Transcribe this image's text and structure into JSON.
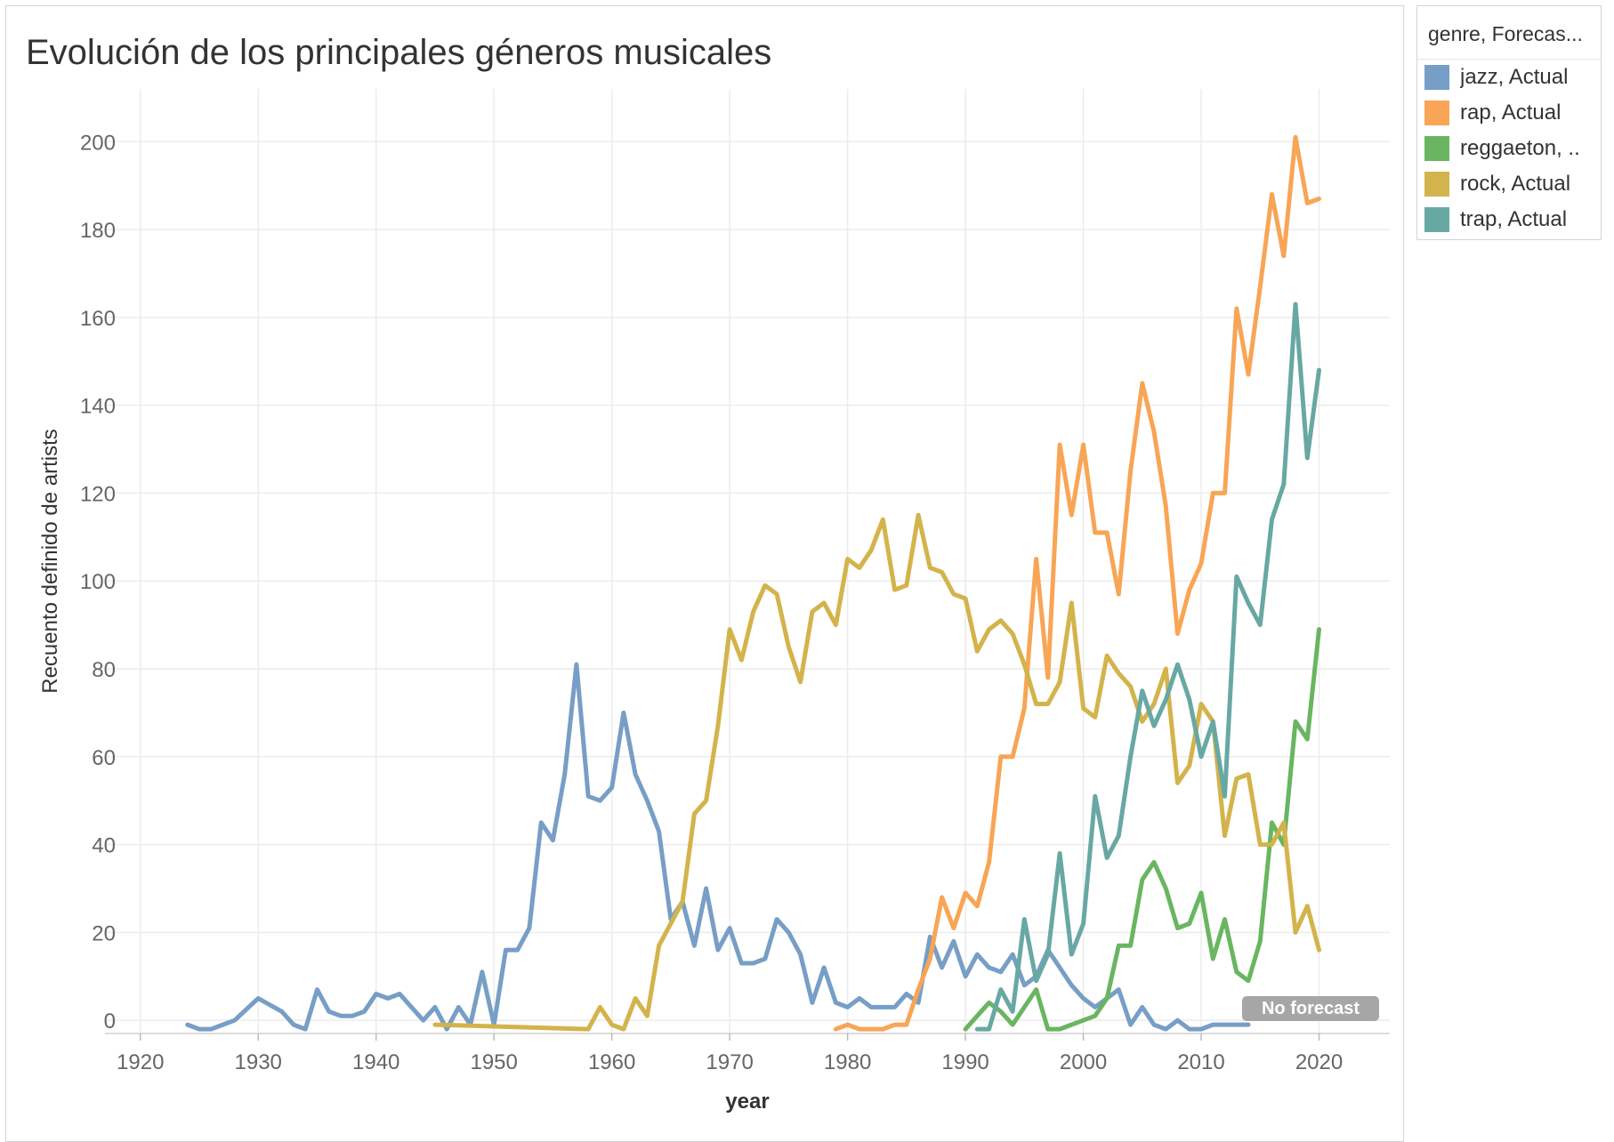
{
  "chart_data": {
    "type": "line",
    "title": "Evolución de los principales géneros musicales",
    "xlabel": "year",
    "ylabel": "Recuento definido de artists",
    "xlim": [
      1917,
      2026
    ],
    "ylim": [
      -3,
      212
    ],
    "xticks": [
      1920,
      1930,
      1940,
      1950,
      1960,
      1970,
      1980,
      1990,
      2000,
      2010,
      2020
    ],
    "yticks": [
      0,
      20,
      40,
      60,
      80,
      100,
      120,
      140,
      160,
      180,
      200
    ],
    "grid": true,
    "legend": {
      "title": "genre, Forecas...",
      "position": "right",
      "entries": [
        "jazz, Actual",
        "rap, Actual",
        "reggaeton, ..",
        "rock, Actual",
        "trap, Actual"
      ]
    },
    "annotation": "No forecast",
    "series": [
      {
        "name": "jazz, Actual",
        "color": "#779ec6",
        "x": [
          1924,
          1925,
          1926,
          1928,
          1930,
          1932,
          1933,
          1934,
          1935,
          1936,
          1937,
          1938,
          1939,
          1940,
          1941,
          1942,
          1943,
          1944,
          1945,
          1946,
          1947,
          1948,
          1949,
          1950,
          1951,
          1952,
          1953,
          1954,
          1955,
          1956,
          1957,
          1958,
          1959,
          1960,
          1961,
          1962,
          1963,
          1964,
          1965,
          1966,
          1967,
          1968,
          1969,
          1970,
          1971,
          1972,
          1973,
          1974,
          1975,
          1976,
          1977,
          1978,
          1979,
          1980,
          1981,
          1982,
          1983,
          1984,
          1985,
          1986,
          1987,
          1988,
          1989,
          1990,
          1991,
          1992,
          1993,
          1994,
          1995,
          1996,
          1997,
          1998,
          1999,
          2000,
          2001,
          2002,
          2003,
          2004,
          2005,
          2006,
          2007,
          2008,
          2009,
          2010,
          2011,
          2012,
          2013,
          2014
        ],
        "y": [
          -1,
          -2,
          -2,
          0,
          5,
          2,
          -1,
          -2,
          7,
          2,
          1,
          1,
          2,
          6,
          5,
          6,
          3,
          0,
          3,
          -2,
          3,
          -1,
          11,
          -1,
          16,
          16,
          21,
          45,
          41,
          56,
          81,
          51,
          50,
          53,
          70,
          56,
          50,
          43,
          23,
          27,
          17,
          30,
          16,
          21,
          13,
          13,
          14,
          23,
          20,
          15,
          4,
          12,
          4,
          3,
          5,
          3,
          3,
          3,
          6,
          4,
          19,
          12,
          18,
          10,
          15,
          12,
          11,
          15,
          8,
          10,
          16,
          12,
          8,
          5,
          3,
          5,
          7,
          -1,
          3,
          -1,
          -2,
          0,
          -2,
          -2,
          -1,
          -1,
          -1,
          -1
        ]
      },
      {
        "name": "rap, Actual",
        "color": "#f8a555",
        "x": [
          1979,
          1980,
          1981,
          1982,
          1983,
          1984,
          1985,
          1986,
          1987,
          1988,
          1989,
          1990,
          1991,
          1992,
          1993,
          1994,
          1995,
          1996,
          1997,
          1998,
          1999,
          2000,
          2001,
          2002,
          2003,
          2004,
          2005,
          2006,
          2007,
          2008,
          2009,
          2010,
          2011,
          2012,
          2013,
          2014,
          2015,
          2016,
          2017,
          2018,
          2019,
          2020
        ],
        "y": [
          -2,
          -1,
          -2,
          -2,
          -2,
          -1,
          -1,
          7,
          14,
          28,
          21,
          29,
          26,
          36,
          60,
          60,
          71,
          105,
          78,
          131,
          115,
          131,
          111,
          111,
          97,
          125,
          145,
          134,
          117,
          88,
          98,
          104,
          120,
          120,
          162,
          147,
          167,
          188,
          174,
          201,
          186,
          187
        ]
      },
      {
        "name": "reggaeton, ..",
        "color": "#6ab561",
        "x": [
          1990,
          1991,
          1992,
          1993,
          1994,
          1995,
          1996,
          1997,
          1998,
          1999,
          2000,
          2001,
          2002,
          2003,
          2004,
          2005,
          2006,
          2007,
          2008,
          2009,
          2010,
          2011,
          2012,
          2013,
          2014,
          2015,
          2016,
          2017,
          2018,
          2019,
          2020
        ],
        "y": [
          -2,
          1,
          4,
          2,
          -1,
          3,
          7,
          -2,
          -2,
          -1,
          0,
          1,
          5,
          17,
          17,
          32,
          36,
          30,
          21,
          22,
          29,
          14,
          23,
          11,
          9,
          18,
          45,
          40,
          68,
          64,
          89
        ]
      },
      {
        "name": "rock, Actual",
        "color": "#d3b34b",
        "x": [
          1945,
          1958,
          1959,
          1960,
          1961,
          1962,
          1963,
          1964,
          1966,
          1967,
          1968,
          1969,
          1970,
          1971,
          1972,
          1973,
          1974,
          1975,
          1976,
          1977,
          1978,
          1979,
          1980,
          1981,
          1982,
          1983,
          1984,
          1985,
          1986,
          1987,
          1988,
          1989,
          1990,
          1991,
          1992,
          1993,
          1994,
          1995,
          1996,
          1997,
          1998,
          1999,
          2000,
          2001,
          2002,
          2003,
          2004,
          2005,
          2006,
          2007,
          2008,
          2009,
          2010,
          2011,
          2012,
          2013,
          2014,
          2015,
          2016,
          2017,
          2018,
          2019,
          2020
        ],
        "y": [
          -1,
          -2,
          3,
          -1,
          -2,
          5,
          1,
          17,
          27,
          47,
          50,
          67,
          89,
          82,
          93,
          99,
          97,
          85,
          77,
          93,
          95,
          90,
          105,
          103,
          107,
          114,
          98,
          99,
          115,
          103,
          102,
          97,
          96,
          84,
          89,
          91,
          88,
          81,
          72,
          72,
          77,
          95,
          71,
          69,
          83,
          79,
          76,
          68,
          72,
          80,
          54,
          58,
          72,
          68,
          42,
          55,
          56,
          40,
          40,
          45,
          20,
          26,
          16
        ]
      },
      {
        "name": "trap, Actual",
        "color": "#68a8a3",
        "x": [
          1991,
          1992,
          1993,
          1994,
          1995,
          1996,
          1997,
          1998,
          1999,
          2000,
          2001,
          2002,
          2003,
          2004,
          2005,
          2006,
          2007,
          2008,
          2009,
          2010,
          2011,
          2012,
          2013,
          2014,
          2015,
          2016,
          2017,
          2018,
          2019,
          2020
        ],
        "y": [
          -2,
          -2,
          7,
          2,
          23,
          9,
          15,
          38,
          15,
          22,
          51,
          37,
          42,
          60,
          75,
          67,
          73,
          81,
          73,
          60,
          68,
          51,
          101,
          95,
          90,
          114,
          122,
          163,
          128,
          148
        ]
      }
    ]
  }
}
